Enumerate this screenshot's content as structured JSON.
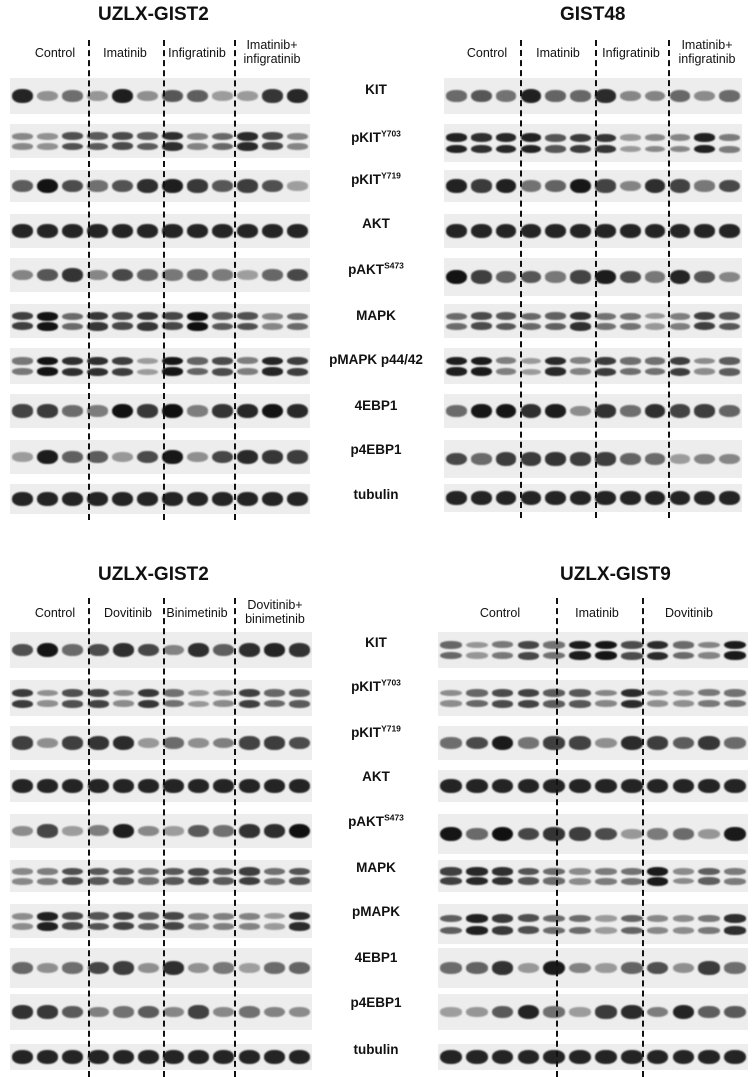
{
  "panels": [
    {
      "id": "tl",
      "title": "UZLX-GIST2",
      "conditions": [
        "Control",
        "Imatinib",
        "Infigratinib",
        "Imatinib+\ninfigratinib"
      ],
      "lanes": 12
    },
    {
      "id": "tr",
      "title": "GIST48",
      "conditions": [
        "Control",
        "Imatinib",
        "Infigratinib",
        "Imatinib+\ninfigratinib"
      ],
      "lanes": 12
    },
    {
      "id": "bl",
      "title": "UZLX-GIST2",
      "conditions": [
        "Control",
        "Dovitinib",
        "Binimetinib",
        "Dovitinib+\nbinimetinib"
      ],
      "lanes": 12
    },
    {
      "id": "br",
      "title": "UZLX-GIST9",
      "conditions": [
        "Control",
        "Imatinib",
        "Dovitinib"
      ],
      "lanes": 12
    }
  ],
  "markers_top": [
    {
      "base": "KIT",
      "sup": ""
    },
    {
      "base": "pKIT",
      "sup": "Y703"
    },
    {
      "base": "pKIT",
      "sup": "Y719"
    },
    {
      "base": "AKT",
      "sup": ""
    },
    {
      "base": "pAKT",
      "sup": "S473"
    },
    {
      "base": "MAPK",
      "sup": ""
    },
    {
      "base": "pMAPK p44/42",
      "sup": ""
    },
    {
      "base": "4EBP1",
      "sup": ""
    },
    {
      "base": "p4EBP1",
      "sup": ""
    },
    {
      "base": "tubulin",
      "sup": ""
    }
  ],
  "markers_bottom": [
    {
      "base": "KIT",
      "sup": ""
    },
    {
      "base": "pKIT",
      "sup": "Y703"
    },
    {
      "base": "pKIT",
      "sup": "Y719"
    },
    {
      "base": "AKT",
      "sup": ""
    },
    {
      "base": "pAKT",
      "sup": "S473"
    },
    {
      "base": "MAPK",
      "sup": ""
    },
    {
      "base": "pMAPK",
      "sup": ""
    },
    {
      "base": "4EBP1",
      "sup": ""
    },
    {
      "base": "p4EBP1",
      "sup": ""
    },
    {
      "base": "tubulin",
      "sup": ""
    }
  ]
}
